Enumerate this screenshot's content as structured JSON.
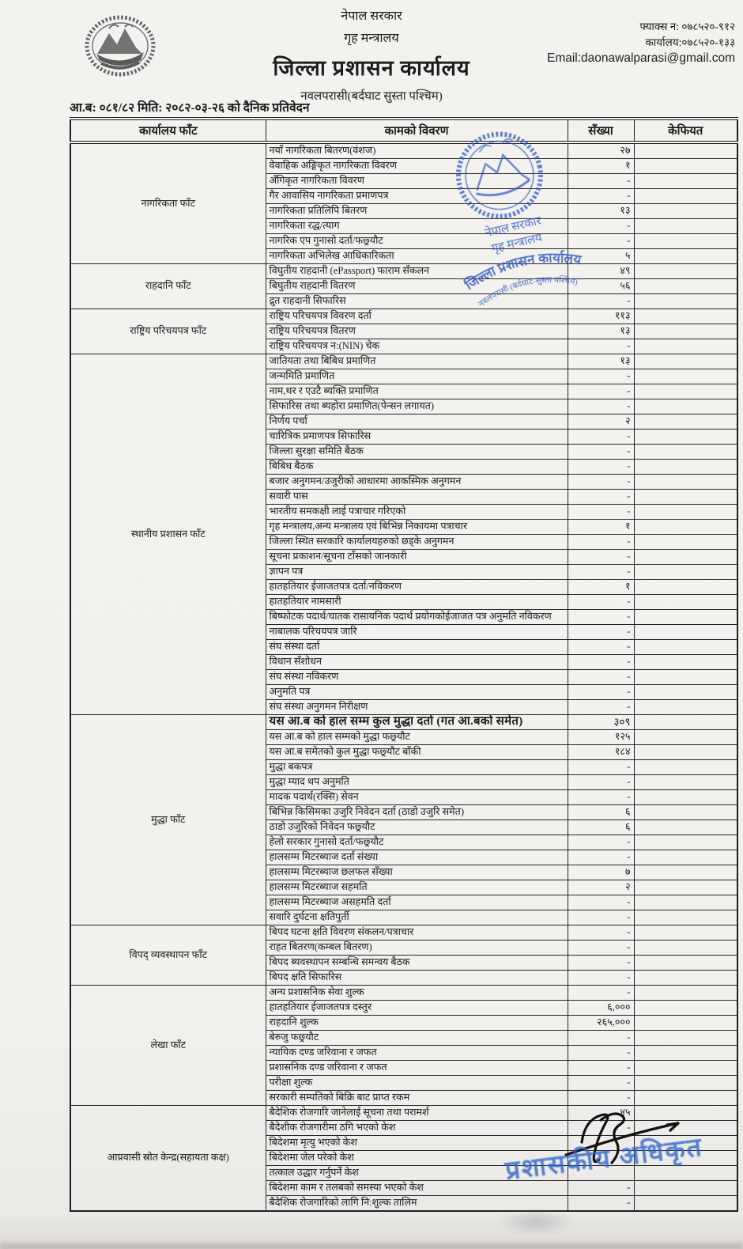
{
  "header": {
    "gov": "नेपाल सरकार",
    "ministry": "गृह मन्त्रालय",
    "office": "जिल्ला प्रशासन कार्यालय",
    "address": "नवलपरासी(बर्दघाट सुस्ता पश्चिम)",
    "fax": "फ्याक्स न: ०७८५२०-९१२",
    "phone": "कार्यालय:०७८५२०-१३३",
    "email": "Email:daonawalparasi@gmail.com",
    "report_line": "आ.ब: ०८१/८२ मिति: २०८२-०३-२६ को दैनिक प्रतिवेदन"
  },
  "table": {
    "columns": [
      "कार्यालय फाँट",
      "कामको विवरण",
      "सँख्या",
      "केफियत"
    ],
    "sections": [
      {
        "name": "नागरिकता फाँट",
        "rows": [
          {
            "work": "नयाँ नागरिकता बितरण(वंशज)",
            "count": "२७",
            "remark": ""
          },
          {
            "work": "वेवाहिक अङ्गिकृत नागरिकता विवरण",
            "count": "१",
            "remark": ""
          },
          {
            "work": "अँगिकृत नागरिकता विवरण",
            "count": "-",
            "remark": ""
          },
          {
            "work": "गैर आवासिय नागरिकता प्रमाणपत्र",
            "count": "-",
            "remark": ""
          },
          {
            "work": "नागरिकता प्रतिलिपि बितरण",
            "count": "१३",
            "remark": ""
          },
          {
            "work": "नागरिकता रद्ध/त्याग",
            "count": "-",
            "remark": ""
          },
          {
            "work": "नागरिक एप गुनासो दर्ता/फछ्र्यौट",
            "count": "-",
            "remark": ""
          },
          {
            "work": "नागरिकता अभिलेख आधिकारिकता",
            "count": "५",
            "remark": ""
          }
        ]
      },
      {
        "name": "राहदानि फाँट",
        "rows": [
          {
            "work": "विघुतीय राहदानी (ePassport) फाराम सँकलन",
            "count": "४९",
            "remark": ""
          },
          {
            "work": "बिघुतीय राहदानी वितरण",
            "count": "५६",
            "remark": ""
          },
          {
            "work": "द्रुत राहदानी सिफारिस",
            "count": "-",
            "remark": ""
          }
        ]
      },
      {
        "name": "राष्ट्रिय परिचयपत्र फाँट",
        "rows": [
          {
            "work": "राष्ट्रिय परिचयपत्र विवरण दर्ता",
            "count": "११३",
            "remark": ""
          },
          {
            "work": "राष्ट्रिय परिचयपत्र वितरण",
            "count": "१३",
            "remark": ""
          },
          {
            "work": "राष्ट्रिय परिचयपत्र न:(NIN) चेक",
            "count": "-",
            "remark": ""
          }
        ]
      },
      {
        "name": "स्थानीय प्रशासन फाँट",
        "rows": [
          {
            "work": "जातियता तथा बिबिध प्रमाणित",
            "count": "१३",
            "remark": ""
          },
          {
            "work": "जन्ममिति प्रमाणित",
            "count": "-",
            "remark": ""
          },
          {
            "work": "नाम,थर र एउटै ब्यक्ति प्रमाणित",
            "count": "-",
            "remark": ""
          },
          {
            "work": "सिफारिस तथा ब्यहोरा प्रमाणित(पेन्सन लगायत)",
            "count": "-",
            "remark": ""
          },
          {
            "work": "निर्णय पर्चा",
            "count": "२",
            "remark": ""
          },
          {
            "work": "चारित्रिक प्रमाणपत्र सिफारिस",
            "count": "-",
            "remark": ""
          },
          {
            "work": "जिल्ला सुरक्षा समिति बैठक",
            "count": "-",
            "remark": ""
          },
          {
            "work": "बिबिध बैठक",
            "count": "-",
            "remark": ""
          },
          {
            "work": "बजार अनुगमन/उजुरीको आधारमा आकस्मिक अनुगमन",
            "count": "-",
            "remark": ""
          },
          {
            "work": "सवारी पास",
            "count": "-",
            "remark": ""
          },
          {
            "work": "भारतीय समकक्षी लाई पत्राचार गरिएको",
            "count": "-",
            "remark": ""
          },
          {
            "work": "गृह मन्त्रालय,अन्य मन्त्रालय एवं बिभिन्न निकायमा पत्राचार",
            "count": "१",
            "remark": ""
          },
          {
            "work": "जिल्ला स्थित सरकारि कार्यालयहरुको छड्के अनुगमन",
            "count": "-",
            "remark": ""
          },
          {
            "work": "सूचना प्रकाशन/सूचना टाँसको जानकारी",
            "count": "-",
            "remark": ""
          },
          {
            "work": "ज्ञापन पत्र",
            "count": "-",
            "remark": ""
          },
          {
            "work": "हातहतियार ईजाजतपत्र दर्ता/नविकरण",
            "count": "१",
            "remark": ""
          },
          {
            "work": "हातहतियार नामसारी",
            "count": "-",
            "remark": ""
          },
          {
            "work": "बिष्फोटक पदार्थ/घातक रासायनिक पदार्थ प्रयोगकोईजाजत पत्र अनुमति नविकरण",
            "count": "-",
            "remark": ""
          },
          {
            "work": "नाबालक परिचयपत्र जारि",
            "count": "-",
            "remark": ""
          },
          {
            "work": "संघ संस्था दर्ता",
            "count": "-",
            "remark": ""
          },
          {
            "work": "विधान सँशोधन",
            "count": "-",
            "remark": ""
          },
          {
            "work": "संघ संस्था नविकरण",
            "count": "-",
            "remark": ""
          },
          {
            "work": "अनुमति पत्र",
            "count": "-",
            "remark": ""
          },
          {
            "work": "संघ संस्था अनुगमन निरीक्षण",
            "count": "-",
            "remark": ""
          }
        ]
      },
      {
        "name": "मुद्धा फाँट",
        "rows": [
          {
            "work": "यस आ.ब को हाल सम्म कुल मुद्धा दर्ता (गत आ.बको समेत)",
            "count": "३०९",
            "remark": "",
            "big": true
          },
          {
            "work": "यस आ.ब को हाल सम्मको मुद्धा फछ्र्यौट",
            "count": "१२५",
            "remark": ""
          },
          {
            "work": "यस आ.ब समेतको कुल मुद्धा फछ्र्यौट बाँकी",
            "count": "१८४",
            "remark": ""
          },
          {
            "work": "मुद्धा बकपत्र",
            "count": "-",
            "remark": ""
          },
          {
            "work": "मुद्धा म्याद थप अनुमति",
            "count": "-",
            "remark": ""
          },
          {
            "work": "मादक पदार्थ(रक्सि) सेवन",
            "count": "-",
            "remark": ""
          },
          {
            "work": "बिभिन्न किसिमका उजुरि निवेदन दर्ता (ठाडो उजुरि समेत)",
            "count": "६",
            "remark": ""
          },
          {
            "work": "ठाडो उजुरिको निवेदन फछ्र्यौट",
            "count": "६",
            "remark": ""
          },
          {
            "work": "हेलो सरकार गुनासो दर्ता/फछ्र्यौट",
            "count": "-",
            "remark": ""
          },
          {
            "work": "हालसम्म मिटरब्याज दर्ता संख्या",
            "count": "-",
            "remark": ""
          },
          {
            "work": "हालसम्म मिटरब्याज छलफल सँख्या",
            "count": "७",
            "remark": ""
          },
          {
            "work": "हालसम्म मिटरब्याज सहमति",
            "count": "२",
            "remark": ""
          },
          {
            "work": "हालसम्म मिटरब्याज असहमति दर्ता",
            "count": "-",
            "remark": ""
          },
          {
            "work": "सवारि दुर्घटना क्षतिपुर्ती",
            "count": "-",
            "remark": ""
          }
        ]
      },
      {
        "name": "विपद् व्यवस्थापन फाँट",
        "rows": [
          {
            "work": "बिपद घटना क्षति विवरण संकलन/पत्राचार",
            "count": "-",
            "remark": ""
          },
          {
            "work": "राहत बितरण(कम्बल बितरण)",
            "count": "-",
            "remark": ""
          },
          {
            "work": "बिपद ब्यवस्थापन सम्बन्धि समन्वय बैठक",
            "count": "-",
            "remark": ""
          },
          {
            "work": "बिपद क्षति सिफारिस",
            "count": "-",
            "remark": ""
          }
        ]
      },
      {
        "name": "लेखा फाँट",
        "rows": [
          {
            "work": "अन्य प्रशासनिक सेवा शुल्क",
            "count": "-",
            "remark": ""
          },
          {
            "work": "हातहतियार ईजाजतपत्र दस्तुर",
            "count": "६,०००",
            "remark": ""
          },
          {
            "work": "राहदानि शुल्क",
            "count": "२६५,०००",
            "remark": ""
          },
          {
            "work": "बेरुजु फछ्र्यौट",
            "count": "-",
            "remark": ""
          },
          {
            "work": "न्यायिक दण्ड जरिवाना र जफत",
            "count": "-",
            "remark": ""
          },
          {
            "work": "प्रशासनिक दण्ड जरिवाना र जफत",
            "count": "-",
            "remark": ""
          },
          {
            "work": "परीक्षा शुल्क",
            "count": "-",
            "remark": ""
          },
          {
            "work": "सरकारी सम्पतिको बिक्रि बाट प्राप्त रकम",
            "count": "-",
            "remark": ""
          }
        ]
      },
      {
        "name": "आप्रवासी स्रोत केन्द्र(सहायता कक्ष)",
        "rows": [
          {
            "work": "बैदेशिक रोजगारि जानेलाई सूचना तथा परामर्श",
            "count": "४५",
            "remark": ""
          },
          {
            "work": "बैदेशीक रोजगारीमा ठगि भएको केश",
            "count": "-",
            "remark": ""
          },
          {
            "work": "बिदेशमा मृत्यु भएको केश",
            "count": "",
            "remark": ""
          },
          {
            "work": "बिदेशमा जेल परेको केश",
            "count": "",
            "remark": ""
          },
          {
            "work": "तत्काल उद्धार गर्नुपर्ने केश",
            "count": "",
            "remark": ""
          },
          {
            "work": "बिदेशमा काम र तलबको समस्या भएको केश",
            "count": "-",
            "remark": ""
          },
          {
            "work": "बैदेशिक रोजगारिको लागि नि:शुल्क तालिम",
            "count": "-",
            "remark": ""
          }
        ]
      }
    ]
  },
  "stamps": {
    "round": {
      "line1": "नेपाल सरकार",
      "line2": "गृह मन्त्रालय",
      "line3": "जिल्ला प्रशासन कार्यालय",
      "line4": "नवलपरासी (बर्दघाट-सुस्ता पश्चिम)"
    },
    "officer": "प्रशासकीय अधिकृत"
  },
  "colors": {
    "stamp_blue": "#2d64c8",
    "ink_black": "#111111",
    "paper": "#f2f1ed"
  }
}
